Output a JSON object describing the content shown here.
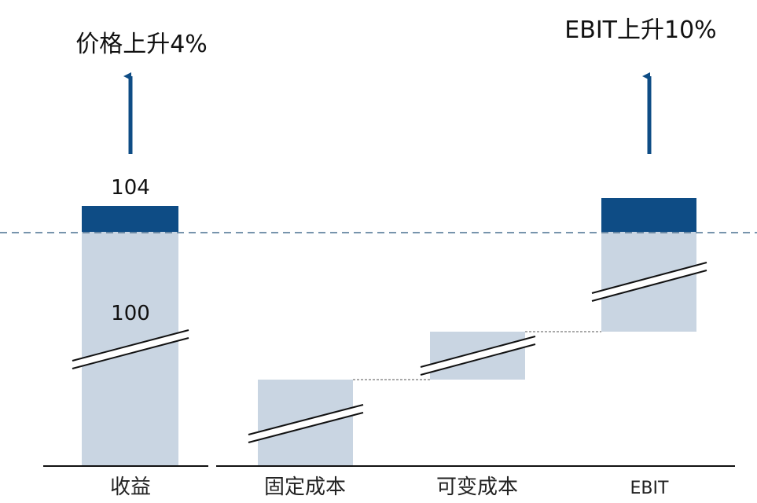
{
  "title_left": "价格上升4%",
  "title_right": "EBIT上升10%",
  "bars": [
    {
      "category": "收益",
      "top_label": "104",
      "mid_label": "100"
    },
    {
      "category": "固定成本"
    },
    {
      "category": "可变成本"
    },
    {
      "category": "EBIT"
    }
  ]
}
